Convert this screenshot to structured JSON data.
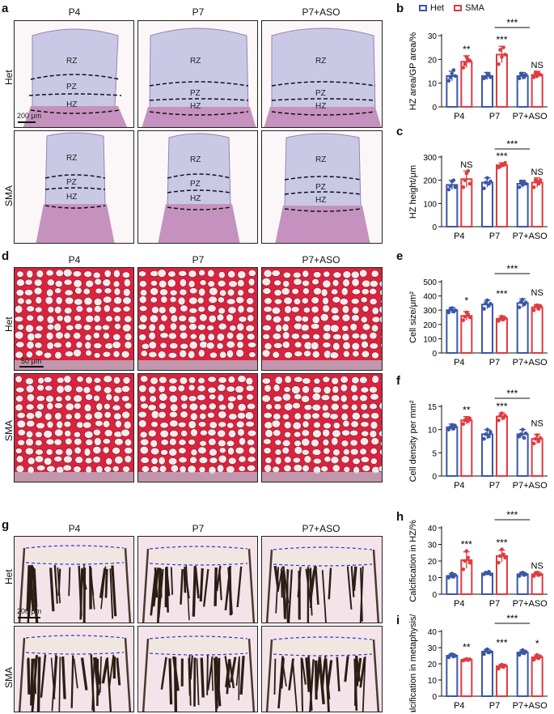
{
  "panels": {
    "a": "a",
    "b": "b",
    "c": "c",
    "d": "d",
    "e": "e",
    "f": "f",
    "g": "g",
    "h": "h",
    "i": "i"
  },
  "columns": [
    "P4",
    "P7",
    "P7+ASO"
  ],
  "rows": [
    "Het",
    "SMA"
  ],
  "zones": {
    "rz": "RZ",
    "pz": "PZ",
    "hz": "HZ"
  },
  "scale_bars": {
    "a": "200 μm",
    "d": "50 μm",
    "g": "200 μm"
  },
  "legend": {
    "het": "Het",
    "sma": "SMA"
  },
  "colors": {
    "het": "#3b57a7",
    "sma": "#e03b3f",
    "safranin": "#d9233f",
    "he_bg": "#fbf7f8",
    "vk": "#f4e4ea"
  },
  "chart_data": [
    {
      "id": "b",
      "type": "bar",
      "ylabel": "HZ area/GP area/%",
      "ylim": [
        0,
        30
      ],
      "yticks": [
        0,
        10,
        20,
        30
      ],
      "categories": [
        "P4",
        "P7",
        "P7+ASO"
      ],
      "series": [
        {
          "name": "Het",
          "values": [
            13,
            13,
            13
          ],
          "errors": [
            2,
            1.5,
            1.5
          ],
          "points": [
            [
              11,
              12.5,
              14,
              15.5,
              13
            ],
            [
              12,
              12.5,
              14,
              13.5,
              12.5
            ],
            [
              12,
              14,
              13.5,
              12.5,
              13.5
            ]
          ]
        },
        {
          "name": "SMA",
          "values": [
            19,
            22,
            13.5
          ],
          "errors": [
            2.5,
            3.5,
            1.5
          ],
          "points": [
            [
              16.5,
              18,
              21,
              20,
              19.5
            ],
            [
              18,
              24,
              21,
              25,
              22
            ],
            [
              12.5,
              14.5,
              13,
              14,
              13.5
            ]
          ]
        }
      ],
      "sig": [
        "**",
        "***",
        "NS"
      ],
      "bracket": "***"
    },
    {
      "id": "c",
      "type": "bar",
      "ylabel": "HZ height/μm",
      "ylim": [
        0,
        300
      ],
      "yticks": [
        0,
        100,
        200,
        300
      ],
      "categories": [
        "P4",
        "P7",
        "P7+ASO"
      ],
      "series": [
        {
          "name": "Het",
          "values": [
            180,
            190,
            185
          ],
          "errors": [
            20,
            20,
            15
          ],
          "points": [
            [
              160,
              175,
              195,
              200,
              170
            ],
            [
              165,
              190,
              210,
              185,
              195
            ],
            [
              170,
              195,
              180,
              190,
              185
            ]
          ]
        },
        {
          "name": "SMA",
          "values": [
            205,
            265,
            190
          ],
          "errors": [
            35,
            10,
            20
          ],
          "points": [
            [
              170,
              200,
              230,
              240,
              185
            ],
            [
              255,
              260,
              270,
              265,
              275
            ],
            [
              170,
              200,
              195,
              185,
              200
            ]
          ]
        }
      ],
      "sig": [
        "NS",
        "***",
        "NS"
      ],
      "bracket": "***"
    },
    {
      "id": "e",
      "type": "bar",
      "ylabel": "Cell size/μm²",
      "ylim": [
        0,
        500
      ],
      "yticks": [
        0,
        100,
        200,
        300,
        400,
        500
      ],
      "categories": [
        "P4",
        "P7",
        "P7+ASO"
      ],
      "series": [
        {
          "name": "Het",
          "values": [
            300,
            340,
            350
          ],
          "errors": [
            20,
            30,
            30
          ],
          "points": [
            [
              285,
              305,
              315,
              290,
              300
            ],
            [
              310,
              350,
              370,
              330,
              345
            ],
            [
              320,
              360,
              375,
              340,
              355
            ]
          ]
        },
        {
          "name": "SMA",
          "values": [
            260,
            240,
            320
          ],
          "errors": [
            30,
            20,
            20
          ],
          "points": [
            [
              230,
              255,
              285,
              270,
              250
            ],
            [
              225,
              240,
              255,
              235,
              245
            ],
            [
              300,
              325,
              335,
              310,
              330
            ]
          ]
        }
      ],
      "sig": [
        "*",
        "***",
        "NS"
      ],
      "bracket": "***"
    },
    {
      "id": "f",
      "type": "bar",
      "ylabel": "Cell density per mm²",
      "ylim": [
        0,
        15
      ],
      "yticks": [
        0,
        5,
        10,
        15
      ],
      "categories": [
        "P4",
        "P7",
        "P7+ASO"
      ],
      "series": [
        {
          "name": "Het",
          "values": [
            10.5,
            9,
            9
          ],
          "errors": [
            0.7,
            1,
            1
          ],
          "points": [
            [
              10,
              10.5,
              11,
              10.2,
              10.8
            ],
            [
              8,
              9,
              10,
              8.5,
              9.5
            ],
            [
              8.5,
              9,
              10,
              8.2,
              9.2
            ]
          ]
        },
        {
          "name": "SMA",
          "values": [
            12,
            12.8,
            8
          ],
          "errors": [
            0.8,
            0.8,
            1
          ],
          "points": [
            [
              11.2,
              12,
              12.5,
              11.8,
              12.4
            ],
            [
              12,
              13,
              13.5,
              12.5,
              13
            ],
            [
              7,
              8,
              8.8,
              7.5,
              8.2
            ]
          ]
        }
      ],
      "sig": [
        "**",
        "***",
        "NS"
      ],
      "bracket": "***"
    },
    {
      "id": "h",
      "type": "bar",
      "ylabel": "Calcification in HZ/%",
      "ylim": [
        0,
        40
      ],
      "yticks": [
        0,
        10,
        20,
        30,
        40
      ],
      "categories": [
        "P4",
        "P7",
        "P7+ASO"
      ],
      "series": [
        {
          "name": "Het",
          "values": [
            11,
            12.5,
            12
          ],
          "errors": [
            1.5,
            1,
            1.2
          ],
          "points": [
            [
              10,
              11,
              12.5,
              10.5,
              11.5
            ],
            [
              12,
              13,
              12.5,
              13.5,
              12
            ],
            [
              11,
              12.5,
              13,
              11.5,
              12
            ]
          ]
        },
        {
          "name": "SMA",
          "values": [
            20.5,
            23,
            12
          ],
          "errors": [
            5,
            3.5,
            1.5
          ],
          "points": [
            [
              15,
              20,
              26,
              22,
              19
            ],
            [
              19,
              23,
              27,
              24,
              22
            ],
            [
              11,
              12.5,
              13,
              11.5,
              12
            ]
          ]
        }
      ],
      "sig": [
        "***",
        "***",
        "NS"
      ],
      "bracket": "***"
    },
    {
      "id": "i",
      "type": "bar",
      "ylabel": "Calcification in metaphysis/%",
      "ylim": [
        0,
        40
      ],
      "yticks": [
        0,
        10,
        20,
        30,
        40
      ],
      "categories": [
        "P4",
        "P7",
        "P7+ASO"
      ],
      "series": [
        {
          "name": "Het",
          "values": [
            25,
            27.5,
            27
          ],
          "errors": [
            1.2,
            1.5,
            1.5
          ],
          "points": [
            [
              24,
              25.5,
              26,
              24.5,
              25
            ],
            [
              26,
              28,
              29,
              27,
              27.5
            ],
            [
              25.5,
              27,
              28.5,
              26.5,
              27.5
            ]
          ]
        },
        {
          "name": "SMA",
          "values": [
            22.5,
            18.5,
            24
          ],
          "errors": [
            0.8,
            1.2,
            1.5
          ],
          "points": [
            [
              22,
              22.5,
              23,
              22.3,
              22.8
            ],
            [
              17,
              18.5,
              19.5,
              18,
              19
            ],
            [
              22.5,
              24,
              25.5,
              23.5,
              24.5
            ]
          ]
        }
      ],
      "sig": [
        "**",
        "***",
        "*"
      ],
      "bracket": "***"
    }
  ]
}
